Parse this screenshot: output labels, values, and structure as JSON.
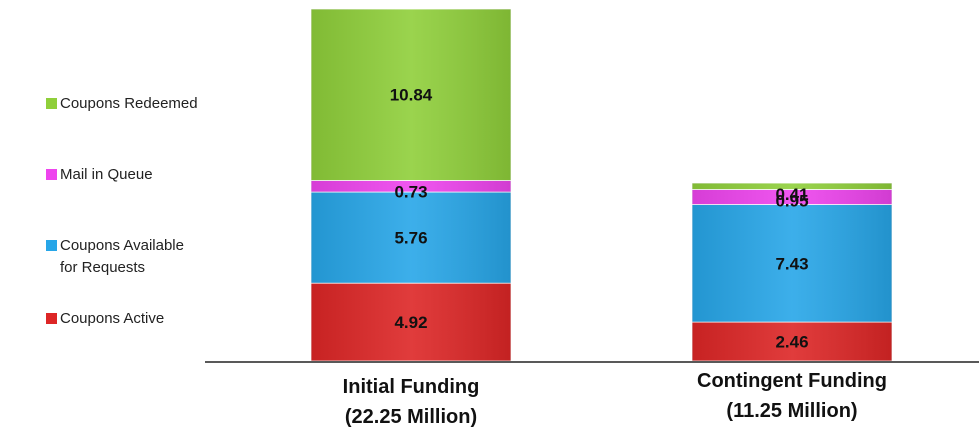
{
  "chart_data": {
    "type": "bar",
    "stacked": true,
    "categories": [
      "Initial Funding\n(22.25 Million)",
      "Contingent Funding\n(11.25 Million)"
    ],
    "series": [
      {
        "name": "Coupons Active",
        "color": "#dd2626",
        "values": [
          4.92,
          2.46
        ]
      },
      {
        "name": "Coupons Available\nfor Requests",
        "color": "#27a6e8",
        "values": [
          5.76,
          7.43
        ]
      },
      {
        "name": "Mail in Queue",
        "color": "#ee44ee",
        "values": [
          0.73,
          0.95
        ]
      },
      {
        "name": "Coupons Redeemed",
        "color": "#8fcf3a",
        "values": [
          10.84,
          0.41
        ]
      }
    ],
    "data_labels": [
      [
        "4.92",
        "2.46"
      ],
      [
        "5.76",
        "7.43"
      ],
      [
        "0.73",
        "0.95"
      ],
      [
        "10.84",
        "0.41"
      ]
    ],
    "ylim": [
      0,
      22.25
    ],
    "legend_position": "left",
    "grid": false
  }
}
